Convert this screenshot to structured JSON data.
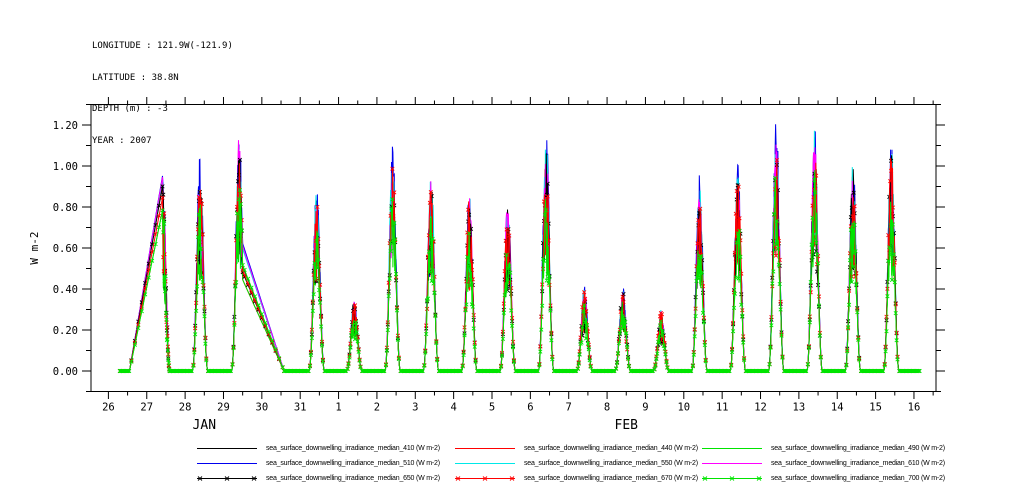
{
  "header": {
    "lines": [
      "LONGITUDE : 121.9W(-121.9)",
      "LATITUDE : 38.8N",
      "DEPTH (m) : -3",
      "YEAR : 2007"
    ]
  },
  "chart_data": {
    "type": "line",
    "title": "",
    "ylabel": "W m-2",
    "y_ticks": [
      "0.00",
      "0.20",
      "0.40",
      "0.60",
      "0.80",
      "1.00",
      "1.20"
    ],
    "y_minor_step": 0.1,
    "ylim": [
      -0.1,
      1.3
    ],
    "x_tick_labels": [
      "26",
      "27",
      "28",
      "29",
      "30",
      "31",
      "1",
      "2",
      "3",
      "4",
      "5",
      "6",
      "7",
      "8",
      "9",
      "10",
      "11",
      "12",
      "13",
      "14",
      "15",
      "16"
    ],
    "month_labels": [
      {
        "label": "JAN",
        "center_day_index": 2.5
      },
      {
        "label": "FEB",
        "center_day_index": 13.5
      }
    ],
    "x_range": "Jan 26, 2007 - Feb 16, 2007",
    "grid": "off",
    "legend_position": "bottom",
    "series": [
      {
        "label": "sea_surface_downwelling_irradiance_median_410 (W m-2)",
        "wavelength": 410,
        "color": "#000000",
        "marker": "line",
        "scale": 0.91
      },
      {
        "label": "sea_surface_downwelling_irradiance_median_440 (W m-2)",
        "wavelength": 440,
        "color": "#ff0000",
        "marker": "line",
        "scale": 0.88
      },
      {
        "label": "sea_surface_downwelling_irradiance_median_490 (W m-2)",
        "wavelength": 490,
        "color": "#00e400",
        "marker": "line",
        "scale": 0.84
      },
      {
        "label": "sea_surface_downwelling_irradiance_median_510 (W m-2)",
        "wavelength": 510,
        "color": "#0000ee",
        "marker": "line",
        "scale": 1.0
      },
      {
        "label": "sea_surface_downwelling_irradiance_median_550 (W m-2)",
        "wavelength": 550,
        "color": "#00e8e8",
        "marker": "line",
        "scale": 0.99
      },
      {
        "label": "sea_surface_downwelling_irradiance_median_610 (W m-2)",
        "wavelength": 610,
        "color": "#ff00ff",
        "marker": "line",
        "scale": 0.94
      },
      {
        "label": "sea_surface_downwelling_irradiance_median_650 (W m-2)",
        "wavelength": 650,
        "color": "#000000",
        "marker": "x",
        "scale": 0.89
      },
      {
        "label": "sea_surface_downwelling_irradiance_median_670 (W m-2)",
        "wavelength": 670,
        "color": "#ff0000",
        "marker": "x",
        "scale": 0.9
      },
      {
        "label": "sea_surface_downwelling_irradiance_median_700 (W m-2)",
        "wavelength": 700,
        "color": "#00e400",
        "marker": "x",
        "scale": 0.8
      }
    ],
    "daily_peak_envelope": [
      {
        "date": "Jan 27",
        "peak": 1.0,
        "note": "straight rising segment across data gap from Jan 26.5"
      },
      {
        "date": "Jan 28",
        "peak": 1.02
      },
      {
        "date": "Jan 29",
        "peak": 1.17,
        "note": "straight falling segment across data gap to Jan 30.6"
      },
      {
        "date": "Jan 30",
        "peak": null
      },
      {
        "date": "Jan 31",
        "peak": 0.92
      },
      {
        "date": "Feb 1",
        "peak": 0.38
      },
      {
        "date": "Feb 2",
        "peak": 1.07
      },
      {
        "date": "Feb 3",
        "peak": 0.97
      },
      {
        "date": "Feb 4",
        "peak": 0.9
      },
      {
        "date": "Feb 5",
        "peak": 0.86
      },
      {
        "date": "Feb 6",
        "peak": 1.16
      },
      {
        "date": "Feb 7",
        "peak": 0.42
      },
      {
        "date": "Feb 8",
        "peak": 0.42
      },
      {
        "date": "Feb 9",
        "peak": 0.3
      },
      {
        "date": "Feb 10",
        "peak": 0.96
      },
      {
        "date": "Feb 11",
        "peak": 1.02
      },
      {
        "date": "Feb 12",
        "peak": 1.2
      },
      {
        "date": "Feb 13",
        "peak": 1.22
      },
      {
        "date": "Feb 14",
        "peak": 1.07
      },
      {
        "date": "Feb 15",
        "peak": 1.12
      }
    ],
    "baseline_value": 0.0
  },
  "legend": {
    "entries": [
      {
        "label": "sea_surface_downwelling_irradiance_median_410 (W m-2)",
        "color": "#000000",
        "marker": "line"
      },
      {
        "label": "sea_surface_downwelling_irradiance_median_440 (W m-2)",
        "color": "#ff0000",
        "marker": "line"
      },
      {
        "label": "sea_surface_downwelling_irradiance_median_490 (W m-2)",
        "color": "#00e400",
        "marker": "line"
      },
      {
        "label": "sea_surface_downwelling_irradiance_median_510 (W m-2)",
        "color": "#0000ee",
        "marker": "line"
      },
      {
        "label": "sea_surface_downwelling_irradiance_median_550 (W m-2)",
        "color": "#00e8e8",
        "marker": "line"
      },
      {
        "label": "sea_surface_downwelling_irradiance_median_610 (W m-2)",
        "color": "#ff00ff",
        "marker": "line"
      },
      {
        "label": "sea_surface_downwelling_irradiance_median_650 (W m-2)",
        "color": "#000000",
        "marker": "x"
      },
      {
        "label": "sea_surface_downwelling_irradiance_median_670 (W m-2)",
        "color": "#ff0000",
        "marker": "x"
      },
      {
        "label": "sea_surface_downwelling_irradiance_median_700 (W m-2)",
        "color": "#00e400",
        "marker": "x"
      }
    ]
  }
}
